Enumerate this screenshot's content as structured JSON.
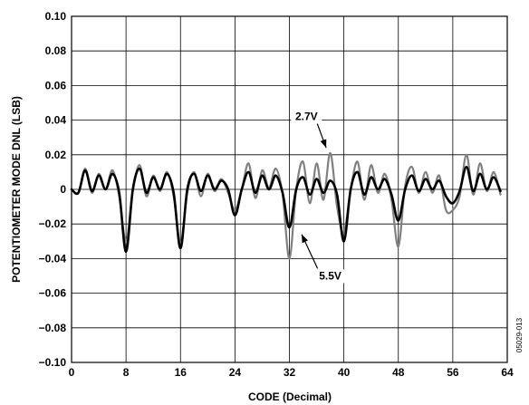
{
  "chart_data": {
    "type": "line",
    "title": "",
    "xlabel": "CODE (Decimal)",
    "ylabel": "POTENTIOMETER MODE DNL (LSB)",
    "xlim": [
      0,
      64
    ],
    "ylim": [
      -0.1,
      0.1
    ],
    "grid": true,
    "x_tick_labels": [
      "0",
      "8",
      "16",
      "24",
      "32",
      "40",
      "48",
      "56",
      "64"
    ],
    "y_tick_labels": [
      "0.10",
      "0.08",
      "0.06",
      "0.04",
      "0.02",
      "0",
      "−0.02",
      "−0.04",
      "−0.06",
      "−0.08",
      "−0.10"
    ],
    "y_ticks": [
      0.1,
      0.08,
      0.06,
      0.04,
      0.02,
      0,
      -0.02,
      -0.04,
      -0.06,
      -0.08,
      -0.1
    ],
    "series": [
      {
        "name": "2.7V",
        "color": "#808080",
        "x": [
          0,
          1,
          2,
          3,
          4,
          5,
          6,
          7,
          8,
          9,
          10,
          11,
          12,
          13,
          14,
          15,
          16,
          17,
          18,
          19,
          20,
          21,
          22,
          23,
          24,
          25,
          26,
          27,
          28,
          29,
          30,
          31,
          32,
          33,
          34,
          35,
          36,
          37,
          38,
          39,
          40,
          41,
          42,
          43,
          44,
          45,
          46,
          47,
          48,
          49,
          50,
          51,
          52,
          53,
          54,
          55,
          56,
          57,
          58,
          59,
          60,
          61,
          62,
          63
        ],
        "y": [
          0.0,
          -0.002,
          0.012,
          -0.002,
          0.009,
          0.0,
          0.011,
          -0.004,
          -0.03,
          -0.001,
          0.014,
          -0.004,
          0.008,
          -0.001,
          0.01,
          -0.004,
          -0.031,
          -0.002,
          0.01,
          -0.004,
          0.009,
          -0.001,
          0.006,
          -0.002,
          -0.012,
          0.0,
          0.015,
          -0.005,
          0.011,
          0.001,
          0.012,
          -0.003,
          -0.04,
          0.0,
          0.016,
          -0.008,
          0.015,
          -0.006,
          0.021,
          -0.01,
          -0.025,
          0.0,
          0.016,
          -0.006,
          0.014,
          -0.002,
          0.009,
          -0.006,
          -0.033,
          0.002,
          0.013,
          -0.002,
          0.01,
          -0.002,
          0.008,
          -0.012,
          -0.012,
          -0.004,
          0.02,
          -0.003,
          0.015,
          -0.001,
          0.01,
          -0.003
        ]
      },
      {
        "name": "5.5V",
        "color": "#000000",
        "x": [
          0,
          1,
          2,
          3,
          4,
          5,
          6,
          7,
          8,
          9,
          10,
          11,
          12,
          13,
          14,
          15,
          16,
          17,
          18,
          19,
          20,
          21,
          22,
          23,
          24,
          25,
          26,
          27,
          28,
          29,
          30,
          31,
          32,
          33,
          34,
          35,
          36,
          37,
          38,
          39,
          40,
          41,
          42,
          43,
          44,
          45,
          46,
          47,
          48,
          49,
          50,
          51,
          52,
          53,
          54,
          55,
          56,
          57,
          58,
          59,
          60,
          61,
          62,
          63
        ],
        "y": [
          0.0,
          -0.002,
          0.011,
          -0.001,
          0.008,
          0.0,
          0.009,
          -0.002,
          -0.036,
          0.0,
          0.012,
          -0.002,
          0.007,
          0.0,
          0.009,
          -0.002,
          -0.034,
          0.0,
          0.009,
          -0.001,
          0.008,
          0.0,
          0.005,
          0.0,
          -0.015,
          0.0,
          0.01,
          -0.002,
          0.008,
          0.0,
          0.008,
          -0.002,
          -0.022,
          0.0,
          0.007,
          -0.003,
          0.006,
          -0.002,
          0.005,
          -0.003,
          -0.03,
          0.0,
          0.01,
          -0.003,
          0.007,
          0.0,
          0.006,
          -0.003,
          -0.018,
          0.0,
          0.008,
          -0.001,
          0.006,
          0.0,
          0.005,
          -0.004,
          -0.008,
          -0.001,
          0.013,
          -0.001,
          0.009,
          0.0,
          0.007,
          -0.001
        ]
      }
    ],
    "annotations": [
      {
        "text": "2.7V",
        "x": 34.5,
        "y": 0.04,
        "arrow_to_x": 37.4,
        "arrow_to_y": 0.024
      },
      {
        "text": "5.5V",
        "x": 38.0,
        "y": -0.052,
        "arrow_to_x": 33.8,
        "arrow_to_y": -0.026
      }
    ]
  },
  "figure_id": "05029-013"
}
